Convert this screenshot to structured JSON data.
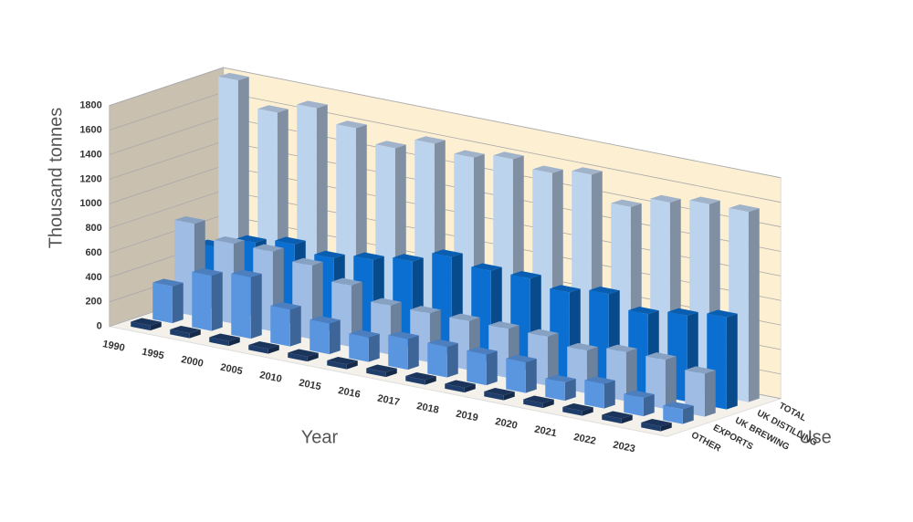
{
  "chart_data": {
    "type": "bar3d",
    "y_label": "Thousand tonnes",
    "x_label": "Year",
    "z_label": "Use",
    "categories": [
      "1990",
      "1995",
      "2000",
      "2005",
      "2010",
      "2015",
      "2016",
      "2017",
      "2018",
      "2019",
      "2020",
      "2021",
      "2022",
      "2023"
    ],
    "series": [
      {
        "name": "OTHER",
        "color": "#1f3d6b",
        "values": [
          40,
          40,
          40,
          40,
          40,
          40,
          40,
          40,
          40,
          40,
          40,
          40,
          40,
          40
        ]
      },
      {
        "name": "EXPORTS",
        "color": "#5a95e0",
        "values": [
          300,
          450,
          500,
          300,
          250,
          200,
          250,
          250,
          250,
          250,
          150,
          200,
          150,
          120
        ]
      },
      {
        "name": "UK BREWING",
        "color": "#9fbde4",
        "values": [
          750,
          650,
          650,
          600,
          500,
          400,
          400,
          400,
          400,
          400,
          350,
          400,
          400,
          350
        ]
      },
      {
        "name": "UK DISTILLING",
        "color": "#0a6fd0",
        "values": [
          500,
          600,
          650,
          600,
          650,
          700,
          800,
          750,
          750,
          700,
          750,
          650,
          700,
          750
        ]
      },
      {
        "name": "TOTAL",
        "color": "#bcd3ee",
        "values": [
          1800,
          1600,
          1700,
          1600,
          1500,
          1600,
          1550,
          1600,
          1550,
          1600,
          1400,
          1500,
          1550,
          1550
        ]
      }
    ],
    "ylim": [
      0,
      1800
    ],
    "yticks": [
      0,
      200,
      400,
      600,
      800,
      1000,
      1200,
      1400,
      1600,
      1800
    ],
    "grid": true
  }
}
